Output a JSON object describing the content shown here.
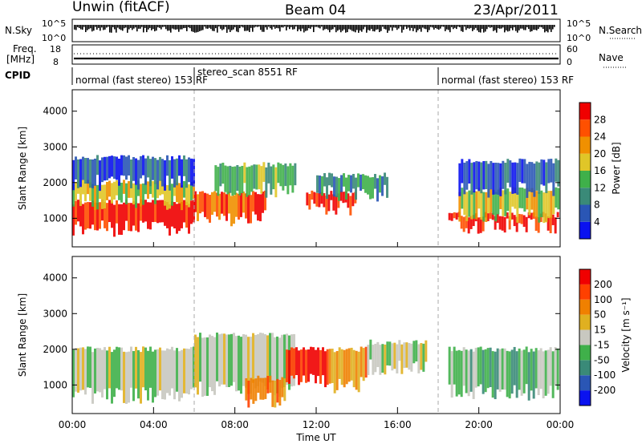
{
  "header": {
    "station": "Unwin (fitACF)",
    "beam": "Beam 04",
    "date": "23/Apr/2011"
  },
  "summary_panels": {
    "nsky_label": "N.Sky",
    "nsearch_label": "N.Search",
    "nsky_ticks": [
      "10^5",
      "10^0"
    ],
    "nsearch_ticks": [
      "10^5",
      "10^0"
    ],
    "freq_label_line1": "Freq.",
    "freq_label_line2": "[MHz]",
    "freq_ticks": [
      "18",
      "8"
    ],
    "nave_label": "Nave",
    "nave_ticks": [
      "60",
      "0"
    ],
    "cpid_label": "CPID",
    "cpid_segments": [
      {
        "label": "normal (fast stereo) 153 RF",
        "start_hour": 0,
        "end_hour": 6
      },
      {
        "label": "stereo_scan 8551 RF",
        "start_hour": 6,
        "end_hour": 18
      },
      {
        "label": "normal (fast stereo) 153 RF",
        "start_hour": 18,
        "end_hour": 24
      }
    ]
  },
  "chart_data": [
    {
      "type": "heatmap",
      "name": "power",
      "ylabel": "Slant Range [km]",
      "yticks": [
        1000,
        2000,
        3000,
        4000
      ],
      "ylim": [
        200,
        4600
      ],
      "xlim_hours": [
        0,
        24
      ],
      "colorbar": {
        "label": "Power [dB]",
        "ticks": [
          "4",
          "8",
          "12",
          "16",
          "20",
          "24",
          "28"
        ],
        "colors": [
          "#0a12f0",
          "#2a56b5",
          "#3a8a78",
          "#3fb04a",
          "#e0c628",
          "#f09000",
          "#ff5000",
          "#f00000"
        ]
      },
      "patches": [
        {
          "t0": 0.0,
          "t1": 6.0,
          "r0": 700,
          "r1": 1450,
          "level": 7
        },
        {
          "t0": 0.0,
          "t1": 6.0,
          "r0": 1450,
          "r1": 2000,
          "level": 4
        },
        {
          "t0": 0.0,
          "t1": 6.0,
          "r0": 2000,
          "r1": 2700,
          "level": 1
        },
        {
          "t0": 6.0,
          "t1": 9.5,
          "r0": 1000,
          "r1": 1700,
          "level": 6
        },
        {
          "t0": 7.0,
          "t1": 11.0,
          "r0": 1800,
          "r1": 2500,
          "level": 3
        },
        {
          "t0": 11.5,
          "t1": 14.0,
          "r0": 1300,
          "r1": 1700,
          "level": 7
        },
        {
          "t0": 12.0,
          "t1": 15.5,
          "r0": 1700,
          "r1": 2200,
          "level": 2
        },
        {
          "t0": 18.5,
          "t1": 24.0,
          "r0": 800,
          "r1": 1100,
          "level": 7
        },
        {
          "t0": 19.0,
          "t1": 24.0,
          "r0": 1100,
          "r1": 1800,
          "level": 4
        },
        {
          "t0": 19.0,
          "t1": 24.0,
          "r0": 1800,
          "r1": 2600,
          "level": 1
        }
      ]
    },
    {
      "type": "heatmap",
      "name": "velocity",
      "ylabel": "Slant Range [km]",
      "yticks": [
        1000,
        2000,
        3000,
        4000
      ],
      "ylim": [
        200,
        4600
      ],
      "xlim_hours": [
        0,
        24
      ],
      "xticks": [
        "00:00",
        "04:00",
        "08:00",
        "12:00",
        "16:00",
        "20:00",
        "00:00"
      ],
      "xlabel": "Time UT",
      "colorbar": {
        "label": "Velocity [m s⁻¹]",
        "ticks": [
          "200",
          "100",
          "50",
          "15",
          "-15",
          "-50",
          "-100",
          "-200"
        ],
        "colors": [
          "#0a12f0",
          "#2a56b5",
          "#3a8a78",
          "#3fb04a",
          "#c8c8c0",
          "#e0b020",
          "#f08000",
          "#ff4000",
          "#f00000"
        ]
      },
      "patches": [
        {
          "t0": 0.0,
          "t1": 6.0,
          "r0": 700,
          "r1": 2000,
          "level": 4
        },
        {
          "t0": 6.0,
          "t1": 11.0,
          "r0": 900,
          "r1": 2400,
          "level": 4
        },
        {
          "t0": 8.5,
          "t1": 10.5,
          "r0": 600,
          "r1": 1200,
          "level": 6
        },
        {
          "t0": 10.5,
          "t1": 12.5,
          "r0": 1100,
          "r1": 2000,
          "level": 8
        },
        {
          "t0": 12.5,
          "t1": 14.5,
          "r0": 1000,
          "r1": 2000,
          "level": 6
        },
        {
          "t0": 14.5,
          "t1": 17.5,
          "r0": 1500,
          "r1": 2200,
          "level": 4
        },
        {
          "t0": 18.5,
          "t1": 24.0,
          "r0": 800,
          "r1": 2000,
          "level": 3
        }
      ]
    }
  ]
}
